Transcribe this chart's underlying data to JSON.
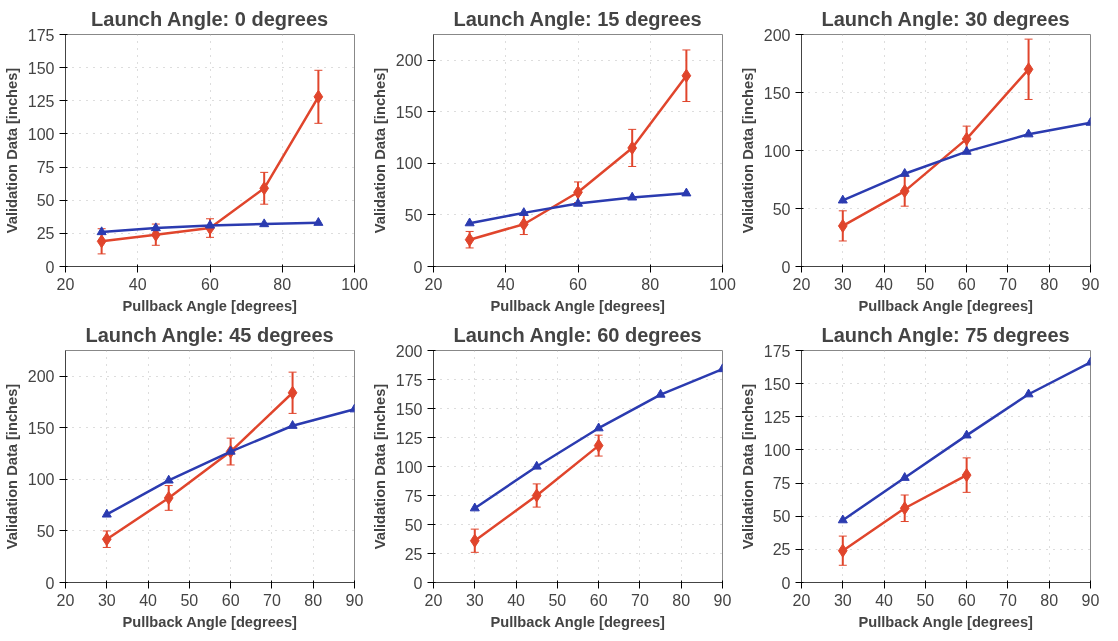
{
  "chart_data": [
    {
      "type": "line",
      "title": "Launch Angle: 0 degrees",
      "xlabel": "Pullback Angle [degrees]",
      "ylabel": "Validation Data [inches]",
      "xlim": [
        20,
        100
      ],
      "xticks": [
        20,
        40,
        60,
        80,
        100
      ],
      "ylim": [
        0,
        175
      ],
      "yticks": [
        0,
        25,
        50,
        75,
        100,
        125,
        150,
        175
      ],
      "grid": true,
      "series": [
        {
          "color": "#e0452c",
          "marker": "diamond",
          "x": [
            30,
            45,
            60,
            75,
            90
          ],
          "values": [
            19,
            24,
            29,
            59,
            128
          ],
          "errors": [
            9.5,
            8,
            7,
            12,
            20
          ]
        },
        {
          "color": "#2b3bb0",
          "marker": "triangle",
          "x": [
            30,
            45,
            60,
            75,
            90
          ],
          "values": [
            26,
            29,
            31,
            32,
            33
          ]
        }
      ]
    },
    {
      "type": "line",
      "title": "Launch Angle: 15 degrees",
      "xlabel": "Pullback Angle [degrees]",
      "ylabel": "Validation Data [inches]",
      "xlim": [
        20,
        100
      ],
      "xticks": [
        20,
        40,
        60,
        80,
        100
      ],
      "ylim": [
        0,
        225
      ],
      "yticks": [
        0,
        50,
        100,
        150,
        200
      ],
      "grid": true,
      "series": [
        {
          "color": "#e0452c",
          "marker": "diamond",
          "x": [
            30,
            45,
            60,
            75,
            90
          ],
          "values": [
            26,
            41,
            72,
            115,
            185
          ],
          "errors": [
            8,
            10,
            10,
            18,
            25
          ]
        },
        {
          "color": "#2b3bb0",
          "marker": "triangle",
          "x": [
            30,
            45,
            60,
            75,
            90
          ],
          "values": [
            42,
            52,
            61,
            67,
            71
          ]
        }
      ]
    },
    {
      "type": "line",
      "title": "Launch Angle: 30 degrees",
      "xlabel": "Pullback Angle [degrees]",
      "ylabel": "Validation Data [inches]",
      "xlim": [
        20,
        90
      ],
      "xticks": [
        20,
        30,
        40,
        50,
        60,
        70,
        80,
        90
      ],
      "ylim": [
        0,
        200
      ],
      "yticks": [
        0,
        50,
        100,
        150,
        200
      ],
      "grid": true,
      "series": [
        {
          "color": "#e0452c",
          "marker": "diamond",
          "x": [
            30,
            45,
            60,
            75
          ],
          "values": [
            35,
            65,
            110,
            170
          ],
          "errors": [
            13,
            13,
            11,
            26
          ]
        },
        {
          "color": "#2b3bb0",
          "marker": "triangle",
          "x": [
            30,
            45,
            60,
            75,
            90
          ],
          "values": [
            57,
            80,
            99,
            114,
            124
          ]
        }
      ]
    },
    {
      "type": "line",
      "title": "Launch Angle: 45 degrees",
      "xlabel": "Pullback Angle [degrees]",
      "ylabel": "Validation Data [inches]",
      "xlim": [
        20,
        90
      ],
      "xticks": [
        20,
        30,
        40,
        50,
        60,
        70,
        80,
        90
      ],
      "ylim": [
        0,
        225
      ],
      "yticks": [
        0,
        50,
        100,
        150,
        200
      ],
      "grid": true,
      "series": [
        {
          "color": "#e0452c",
          "marker": "diamond",
          "x": [
            30,
            45,
            60,
            75
          ],
          "values": [
            42,
            82,
            127,
            184
          ],
          "errors": [
            8,
            12,
            13,
            20
          ]
        },
        {
          "color": "#2b3bb0",
          "marker": "triangle",
          "x": [
            30,
            45,
            60,
            75,
            90
          ],
          "values": [
            66,
            99,
            127,
            152,
            168
          ]
        }
      ]
    },
    {
      "type": "line",
      "title": "Launch Angle: 60 degrees",
      "xlabel": "Pullback Angle [degrees]",
      "ylabel": "Validation Data [inches]",
      "xlim": [
        20,
        90
      ],
      "xticks": [
        20,
        30,
        40,
        50,
        60,
        70,
        80,
        90
      ],
      "ylim": [
        0,
        200
      ],
      "yticks": [
        0,
        25,
        50,
        75,
        100,
        125,
        150,
        175,
        200
      ],
      "grid": true,
      "series": [
        {
          "color": "#e0452c",
          "marker": "diamond",
          "x": [
            30,
            45,
            60
          ],
          "values": [
            36,
            75,
            118
          ],
          "errors": [
            10,
            10,
            9
          ]
        },
        {
          "color": "#2b3bb0",
          "marker": "triangle",
          "x": [
            30,
            45,
            60,
            75,
            90
          ],
          "values": [
            64,
            100,
            133,
            162,
            184
          ]
        }
      ]
    },
    {
      "type": "line",
      "title": "Launch Angle: 75 degrees",
      "xlabel": "Pullback Angle [degrees]",
      "ylabel": "Validation Data [inches]",
      "xlim": [
        20,
        90
      ],
      "xticks": [
        20,
        30,
        40,
        50,
        60,
        70,
        80,
        90
      ],
      "ylim": [
        0,
        175
      ],
      "yticks": [
        0,
        25,
        50,
        75,
        100,
        125,
        150,
        175
      ],
      "grid": true,
      "series": [
        {
          "color": "#e0452c",
          "marker": "diamond",
          "x": [
            30,
            45,
            60
          ],
          "values": [
            24,
            56,
            81
          ],
          "errors": [
            11,
            10,
            13
          ]
        },
        {
          "color": "#2b3bb0",
          "marker": "triangle",
          "x": [
            30,
            45,
            60,
            75,
            90
          ],
          "values": [
            47,
            79,
            111,
            142,
            166
          ]
        }
      ]
    }
  ]
}
